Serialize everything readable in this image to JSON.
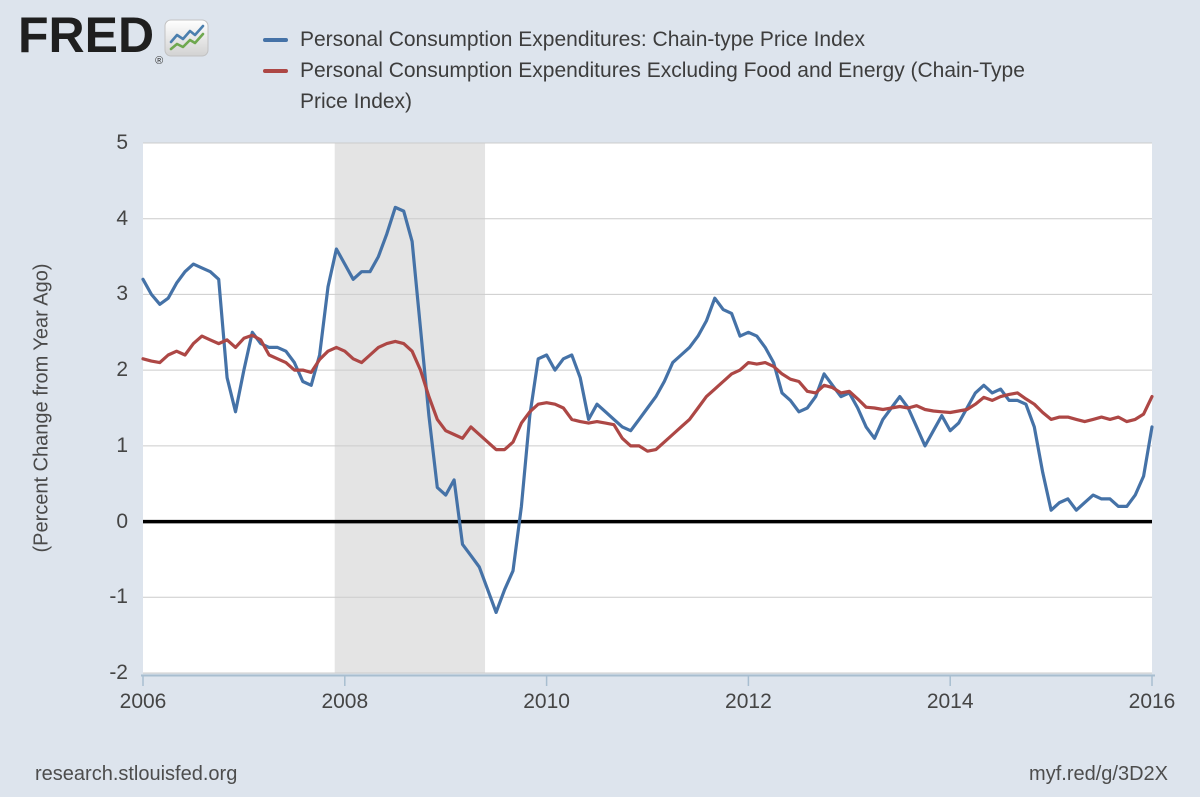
{
  "header": {
    "logo_text": "FRED",
    "registered_mark": "®",
    "legend": [
      {
        "label": "Personal Consumption Expenditures: Chain-type Price Index",
        "color": "#4572a7"
      },
      {
        "label": "Personal Consumption Expenditures Excluding Food and Energy (Chain-Type Price Index)",
        "color": "#ad4745"
      }
    ]
  },
  "footer": {
    "left": "research.stlouisfed.org",
    "right": "myf.red/g/3D2X"
  },
  "colors": {
    "page_background": "#dde4ed",
    "plot_background": "#ffffff",
    "gridline": "#cccccc",
    "zero_line": "#000000",
    "recession_band": "#e4e4e4",
    "axis": "#a8bed0",
    "series_blue": "#4572a7",
    "series_red": "#ad4745",
    "logo_icon_blue": "#4b7fae",
    "logo_icon_green": "#6fa84f"
  },
  "chart_data": {
    "type": "line",
    "title": "",
    "xlabel": "",
    "ylabel": "(Percent Change from Year Ago)",
    "frequency": "monthly",
    "x_start": 2006,
    "x_end": 2016.0833,
    "ylim": [
      -2,
      5
    ],
    "grid": true,
    "zero_line": true,
    "legend_position": "top",
    "x_ticks": [
      2006,
      2008,
      2010,
      2012,
      2014,
      2016
    ],
    "x_tick_labels": [
      "2006",
      "2008",
      "2010",
      "2012",
      "2014",
      "2016"
    ],
    "y_ticks": [
      5,
      4,
      3,
      2,
      1,
      0,
      -1,
      -2
    ],
    "recession_band": {
      "start": 2007.9,
      "end": 2009.39
    },
    "series": [
      {
        "name": "Personal Consumption Expenditures: Chain-type Price Index",
        "color": "#4572a7",
        "start": "2006-01",
        "end": "2016-01",
        "values": [
          3.2,
          3.0,
          2.87,
          2.95,
          3.15,
          3.3,
          3.4,
          3.35,
          3.3,
          3.2,
          1.9,
          1.45,
          2.0,
          2.5,
          2.35,
          2.3,
          2.3,
          2.25,
          2.1,
          1.85,
          1.8,
          2.2,
          3.1,
          3.6,
          3.4,
          3.2,
          3.3,
          3.3,
          3.5,
          3.8,
          4.15,
          4.1,
          3.7,
          2.55,
          1.4,
          0.45,
          0.35,
          0.55,
          -0.3,
          -0.45,
          -0.6,
          -0.9,
          -1.2,
          -0.9,
          -0.65,
          0.2,
          1.4,
          2.15,
          2.2,
          2.0,
          2.15,
          2.2,
          1.9,
          1.35,
          1.55,
          1.45,
          1.35,
          1.25,
          1.2,
          1.35,
          1.5,
          1.65,
          1.85,
          2.1,
          2.2,
          2.3,
          2.45,
          2.65,
          2.95,
          2.8,
          2.75,
          2.45,
          2.5,
          2.45,
          2.3,
          2.1,
          1.7,
          1.6,
          1.45,
          1.5,
          1.65,
          1.95,
          1.8,
          1.65,
          1.7,
          1.5,
          1.25,
          1.1,
          1.35,
          1.5,
          1.65,
          1.5,
          1.25,
          1.0,
          1.2,
          1.4,
          1.2,
          1.3,
          1.5,
          1.7,
          1.8,
          1.7,
          1.75,
          1.6,
          1.6,
          1.55,
          1.25,
          0.65,
          0.15,
          0.25,
          0.3,
          0.15,
          0.25,
          0.35,
          0.3,
          0.3,
          0.2,
          0.2,
          0.35,
          0.6,
          1.25
        ]
      },
      {
        "name": "Personal Consumption Expenditures Excluding Food and Energy (Chain-Type Price Index)",
        "color": "#ad4745",
        "start": "2006-01",
        "end": "2016-01",
        "values": [
          2.15,
          2.12,
          2.1,
          2.2,
          2.25,
          2.2,
          2.35,
          2.45,
          2.4,
          2.35,
          2.4,
          2.3,
          2.42,
          2.46,
          2.4,
          2.2,
          2.15,
          2.1,
          2.0,
          2.0,
          1.97,
          2.14,
          2.25,
          2.3,
          2.25,
          2.15,
          2.1,
          2.2,
          2.3,
          2.35,
          2.38,
          2.35,
          2.25,
          2.0,
          1.65,
          1.35,
          1.2,
          1.15,
          1.1,
          1.25,
          1.15,
          1.05,
          0.95,
          0.95,
          1.05,
          1.3,
          1.45,
          1.55,
          1.57,
          1.55,
          1.5,
          1.35,
          1.32,
          1.3,
          1.32,
          1.3,
          1.28,
          1.1,
          1.0,
          1.0,
          0.93,
          0.95,
          1.05,
          1.15,
          1.25,
          1.35,
          1.5,
          1.65,
          1.75,
          1.85,
          1.95,
          2.0,
          2.1,
          2.08,
          2.1,
          2.05,
          1.95,
          1.88,
          1.85,
          1.72,
          1.7,
          1.8,
          1.77,
          1.7,
          1.72,
          1.62,
          1.51,
          1.5,
          1.48,
          1.5,
          1.52,
          1.5,
          1.53,
          1.48,
          1.46,
          1.45,
          1.44,
          1.46,
          1.48,
          1.55,
          1.64,
          1.6,
          1.65,
          1.68,
          1.7,
          1.62,
          1.55,
          1.44,
          1.35,
          1.38,
          1.38,
          1.35,
          1.32,
          1.35,
          1.38,
          1.35,
          1.38,
          1.32,
          1.35,
          1.42,
          1.65
        ]
      }
    ]
  }
}
